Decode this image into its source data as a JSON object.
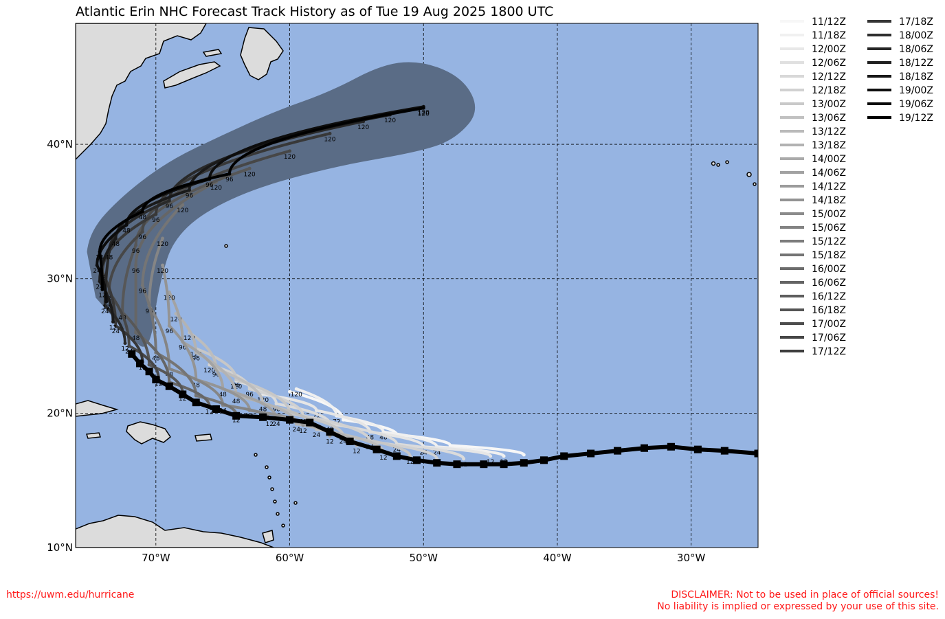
{
  "title": "Atlantic Erin NHC Forecast Track History as of Tue 19 Aug 2025 1800 UTC",
  "map": {
    "lon_range": [
      -76,
      -25
    ],
    "lat_range": [
      10,
      49
    ],
    "x_ticks": [
      "70°W",
      "60°W",
      "50°W",
      "40°W",
      "30°W"
    ],
    "y_ticks": [
      "40°N",
      "30°N",
      "20°N",
      "10°N"
    ],
    "ocean_color": "#96b4e2",
    "land_color": "#dcdcdc",
    "cone_color": "#5a6c86",
    "grid": true
  },
  "legend_labels": [
    "11/12Z",
    "11/18Z",
    "12/00Z",
    "12/06Z",
    "12/12Z",
    "12/18Z",
    "13/00Z",
    "13/06Z",
    "13/12Z",
    "13/18Z",
    "14/00Z",
    "14/06Z",
    "14/12Z",
    "14/18Z",
    "15/00Z",
    "15/06Z",
    "15/12Z",
    "15/18Z",
    "16/00Z",
    "16/06Z",
    "16/12Z",
    "16/18Z",
    "17/00Z",
    "17/06Z",
    "17/12Z",
    "17/18Z",
    "18/00Z",
    "18/06Z",
    "18/12Z",
    "18/18Z",
    "19/00Z",
    "19/06Z",
    "19/12Z"
  ],
  "observed_track": [
    [
      -25,
      17.0
    ],
    [
      -27.5,
      17.2
    ],
    [
      -29.5,
      17.3
    ],
    [
      -31.5,
      17.5
    ],
    [
      -33.5,
      17.4
    ],
    [
      -35.5,
      17.2
    ],
    [
      -37.5,
      17.0
    ],
    [
      -39.5,
      16.8
    ],
    [
      -41,
      16.5
    ],
    [
      -42.5,
      16.3
    ],
    [
      -44,
      16.2
    ],
    [
      -45.5,
      16.2
    ],
    [
      -47.5,
      16.2
    ],
    [
      -49,
      16.3
    ],
    [
      -50.5,
      16.5
    ],
    [
      -52,
      16.8
    ],
    [
      -53.5,
      17.3
    ],
    [
      -55.5,
      17.9
    ],
    [
      -57,
      18.6
    ],
    [
      -58.5,
      19.3
    ],
    [
      -60,
      19.5
    ],
    [
      -62,
      19.7
    ],
    [
      -64,
      19.8
    ],
    [
      -65.5,
      20.3
    ],
    [
      -67,
      20.8
    ],
    [
      -68,
      21.4
    ],
    [
      -69,
      22.0
    ],
    [
      -70,
      22.5
    ],
    [
      -70.5,
      23.1
    ],
    [
      -71.2,
      23.7
    ],
    [
      -71.8,
      24.4
    ]
  ],
  "forecast_tracks": [
    {
      "init": "11/12Z",
      "shade": 0.97,
      "points": [
        [
          -42.5,
          16.9
        ],
        [
          -48,
          17.6
        ],
        [
          -52,
          18.4
        ],
        [
          -56,
          19.5
        ],
        [
          -60,
          21.6
        ]
      ],
      "labels": []
    },
    {
      "init": "11/18Z",
      "shade": 0.94,
      "points": [
        [
          -44,
          16.8
        ],
        [
          -49,
          17.5
        ],
        [
          -53,
          18.6
        ],
        [
          -56.5,
          19.8
        ],
        [
          -59.5,
          21.8
        ]
      ],
      "labels": [
        "12",
        "24",
        "48",
        "72",
        "120"
      ]
    },
    {
      "init": "12/00Z",
      "shade": 0.9,
      "points": [
        [
          -45,
          16.8
        ],
        [
          -50,
          17.5
        ],
        [
          -54,
          18.6
        ],
        [
          -58,
          20.2
        ],
        [
          -62,
          21.4
        ]
      ],
      "labels": [
        "12",
        "24",
        "48",
        "72",
        "120"
      ]
    },
    {
      "init": "12/12Z",
      "shade": 0.86,
      "points": [
        [
          -47,
          16.6
        ],
        [
          -52,
          17.7
        ],
        [
          -57,
          19.2
        ],
        [
          -61,
          20.7
        ],
        [
          -64,
          22.4
        ]
      ],
      "labels": [
        "12",
        "24",
        "48",
        "96",
        "120"
      ]
    },
    {
      "init": "12/18Z",
      "shade": 0.82,
      "points": [
        [
          -49,
          16.6
        ],
        [
          -54,
          17.9
        ],
        [
          -59,
          19.8
        ],
        [
          -63,
          21.8
        ],
        [
          -66,
          23.6
        ]
      ],
      "labels": [
        "12",
        "24",
        "48",
        "96",
        "120"
      ]
    },
    {
      "init": "13/00Z",
      "shade": 0.78,
      "points": [
        [
          -51,
          16.8
        ],
        [
          -56,
          18.3
        ],
        [
          -60,
          20.0
        ],
        [
          -64,
          22.5
        ],
        [
          -67,
          24.8
        ]
      ],
      "labels": [
        "12",
        "24",
        "48",
        "96",
        "120"
      ]
    },
    {
      "init": "13/06Z",
      "shade": 0.74,
      "points": [
        [
          -53,
          17.1
        ],
        [
          -58,
          18.8
        ],
        [
          -62,
          20.7
        ],
        [
          -65.5,
          23.3
        ],
        [
          -67.5,
          26.0
        ]
      ],
      "labels": [
        "12",
        "24",
        "48",
        "96",
        "120"
      ]
    },
    {
      "init": "13/12Z",
      "shade": 0.7,
      "points": [
        [
          -55,
          17.6
        ],
        [
          -59.5,
          19.2
        ],
        [
          -64,
          21.3
        ],
        [
          -67,
          24.5
        ],
        [
          -68.5,
          27.4
        ]
      ],
      "labels": [
        "12",
        "24",
        "48",
        "96",
        "120"
      ]
    },
    {
      "init": "14/00Z",
      "shade": 0.64,
      "points": [
        [
          -57,
          18.3
        ],
        [
          -61,
          19.6
        ],
        [
          -65,
          21.8
        ],
        [
          -68,
          25.3
        ],
        [
          -69,
          29.0
        ]
      ],
      "labels": [
        "12",
        "24",
        "48",
        "96",
        "120"
      ]
    },
    {
      "init": "14/12Z",
      "shade": 0.58,
      "points": [
        [
          -59,
          19.1
        ],
        [
          -63,
          20.2
        ],
        [
          -67,
          22.5
        ],
        [
          -69,
          26.5
        ],
        [
          -69.5,
          31.0
        ]
      ],
      "labels": [
        "12",
        "24",
        "48",
        "96",
        "120"
      ]
    },
    {
      "init": "15/00Z",
      "shade": 0.52,
      "points": [
        [
          -61.5,
          19.6
        ],
        [
          -65,
          20.6
        ],
        [
          -69,
          23.3
        ],
        [
          -70.5,
          28.0
        ],
        [
          -69.5,
          33.0
        ]
      ],
      "labels": [
        "12",
        "24",
        "48",
        "96",
        "120"
      ]
    },
    {
      "init": "15/12Z",
      "shade": 0.46,
      "points": [
        [
          -64,
          19.9
        ],
        [
          -67,
          21.3
        ],
        [
          -70,
          24.5
        ],
        [
          -71,
          29.5
        ],
        [
          -68,
          35.5
        ]
      ],
      "labels": [
        "12",
        "24",
        "48",
        "96",
        "120"
      ]
    },
    {
      "init": "16/00Z",
      "shade": 0.4,
      "points": [
        [
          -66,
          20.5
        ],
        [
          -69,
          22.3
        ],
        [
          -71.5,
          26.0
        ],
        [
          -71.5,
          31.0
        ],
        [
          -65.5,
          37.2
        ]
      ],
      "labels": [
        "12",
        "24",
        "48",
        "96",
        "120"
      ]
    },
    {
      "init": "16/12Z",
      "shade": 0.34,
      "points": [
        [
          -68,
          21.5
        ],
        [
          -70.5,
          23.6
        ],
        [
          -72.5,
          27.5
        ],
        [
          -71.5,
          32.5
        ],
        [
          -63,
          38.2
        ]
      ],
      "labels": [
        "12",
        "24",
        "48",
        "96",
        "120"
      ]
    },
    {
      "init": "17/00Z",
      "shade": 0.28,
      "points": [
        [
          -69.8,
          22.6
        ],
        [
          -72,
          25.0
        ],
        [
          -73.5,
          29.0
        ],
        [
          -71,
          33.5
        ],
        [
          -60,
          39.5
        ]
      ],
      "labels": [
        "12",
        "24",
        "48",
        "96",
        "120"
      ]
    },
    {
      "init": "17/12Z",
      "shade": 0.22,
      "points": [
        [
          -71,
          23.8
        ],
        [
          -73,
          26.5
        ],
        [
          -74,
          30.5
        ],
        [
          -70,
          34.8
        ],
        [
          -57,
          40.8
        ]
      ],
      "labels": [
        "12",
        "24",
        "48",
        "96",
        "120"
      ]
    },
    {
      "init": "18/00Z",
      "shade": 0.16,
      "points": [
        [
          -72.3,
          25.2
        ],
        [
          -73.8,
          28.0
        ],
        [
          -73.5,
          32.0
        ],
        [
          -69,
          35.8
        ],
        [
          -54.5,
          41.7
        ]
      ],
      "labels": [
        "12",
        "24",
        "48",
        "96",
        "120"
      ]
    },
    {
      "init": "18/12Z",
      "shade": 0.1,
      "points": [
        [
          -73.2,
          26.8
        ],
        [
          -74.2,
          29.8
        ],
        [
          -73,
          33.0
        ],
        [
          -67.5,
          36.6
        ],
        [
          -52.5,
          42.2
        ]
      ],
      "labels": [
        "12",
        "24",
        "48",
        "96",
        "120"
      ]
    },
    {
      "init": "19/00Z",
      "shade": 0.05,
      "points": [
        [
          -73.7,
          28.3
        ],
        [
          -74.4,
          31.0
        ],
        [
          -72.2,
          34.0
        ],
        [
          -66,
          37.4
        ],
        [
          -50,
          42.8
        ]
      ],
      "labels": [
        "12",
        "24",
        "48",
        "96",
        "120"
      ]
    },
    {
      "init": "19/12Z",
      "shade": 0.0,
      "points": [
        [
          -74.0,
          29.2
        ],
        [
          -74.2,
          32.0
        ],
        [
          -71,
          35.0
        ],
        [
          -64.5,
          37.8
        ],
        [
          -50,
          42.7
        ]
      ],
      "labels": [
        "12",
        "24",
        "48",
        "96",
        "120"
      ]
    }
  ],
  "cone": [
    [
      -74.5,
      28.6
    ],
    [
      -72.2,
      26.0
    ],
    [
      -70.5,
      24.3
    ],
    [
      -69.8,
      29.5
    ],
    [
      -68.5,
      33.5
    ],
    [
      -64,
      36.3
    ],
    [
      -57,
      38.3
    ],
    [
      -50,
      39.5
    ],
    [
      -47.5,
      40.5
    ],
    [
      -45.8,
      42.5
    ],
    [
      -47,
      44.9
    ],
    [
      -50,
      46.2
    ],
    [
      -53,
      46.0
    ],
    [
      -57,
      43.9
    ],
    [
      -61,
      42.5
    ],
    [
      -65,
      40.7
    ],
    [
      -69,
      38.8
    ],
    [
      -72.5,
      36.2
    ],
    [
      -75,
      33.5
    ],
    [
      -75.3,
      30.5
    ]
  ],
  "footer": {
    "url": "https://uwm.edu/hurricane",
    "disclaimer_line1": "DISCLAIMER: Not to be used in place of official sources!",
    "disclaimer_line2": "No liability is implied or expressed by your use of this site."
  }
}
